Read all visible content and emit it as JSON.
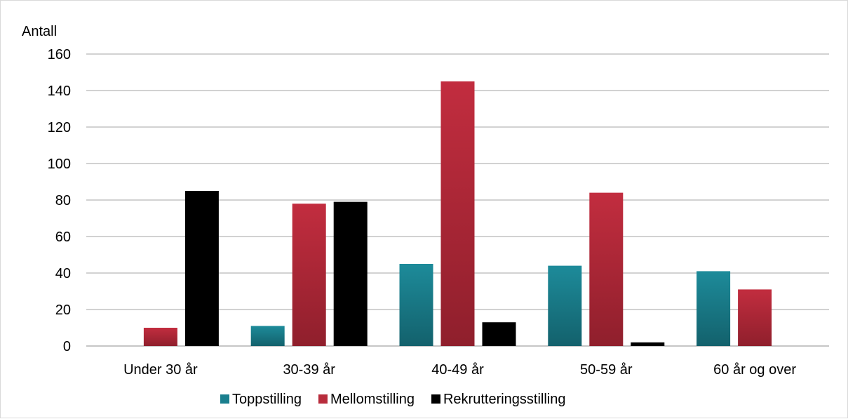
{
  "chart_data": {
    "type": "bar",
    "ylabel": "Antall",
    "ylim": [
      0,
      160
    ],
    "yticks": [
      0,
      20,
      40,
      60,
      80,
      100,
      120,
      140,
      160
    ],
    "grid": true,
    "legend_position": "bottom",
    "categories": [
      "Under 30 år",
      "30-39 år",
      "40-49 år",
      "50-59 år",
      "60 år og over"
    ],
    "series": [
      {
        "name": "Toppstilling",
        "color": "#1a7f8e",
        "values": [
          0,
          11,
          45,
          44,
          41
        ]
      },
      {
        "name": "Mellomstilling",
        "color": "#b82c3c",
        "values": [
          10,
          78,
          145,
          84,
          31
        ]
      },
      {
        "name": "Rekrutteringsstilling",
        "color": "#000000",
        "values": [
          85,
          79,
          13,
          2,
          0
        ]
      }
    ]
  }
}
